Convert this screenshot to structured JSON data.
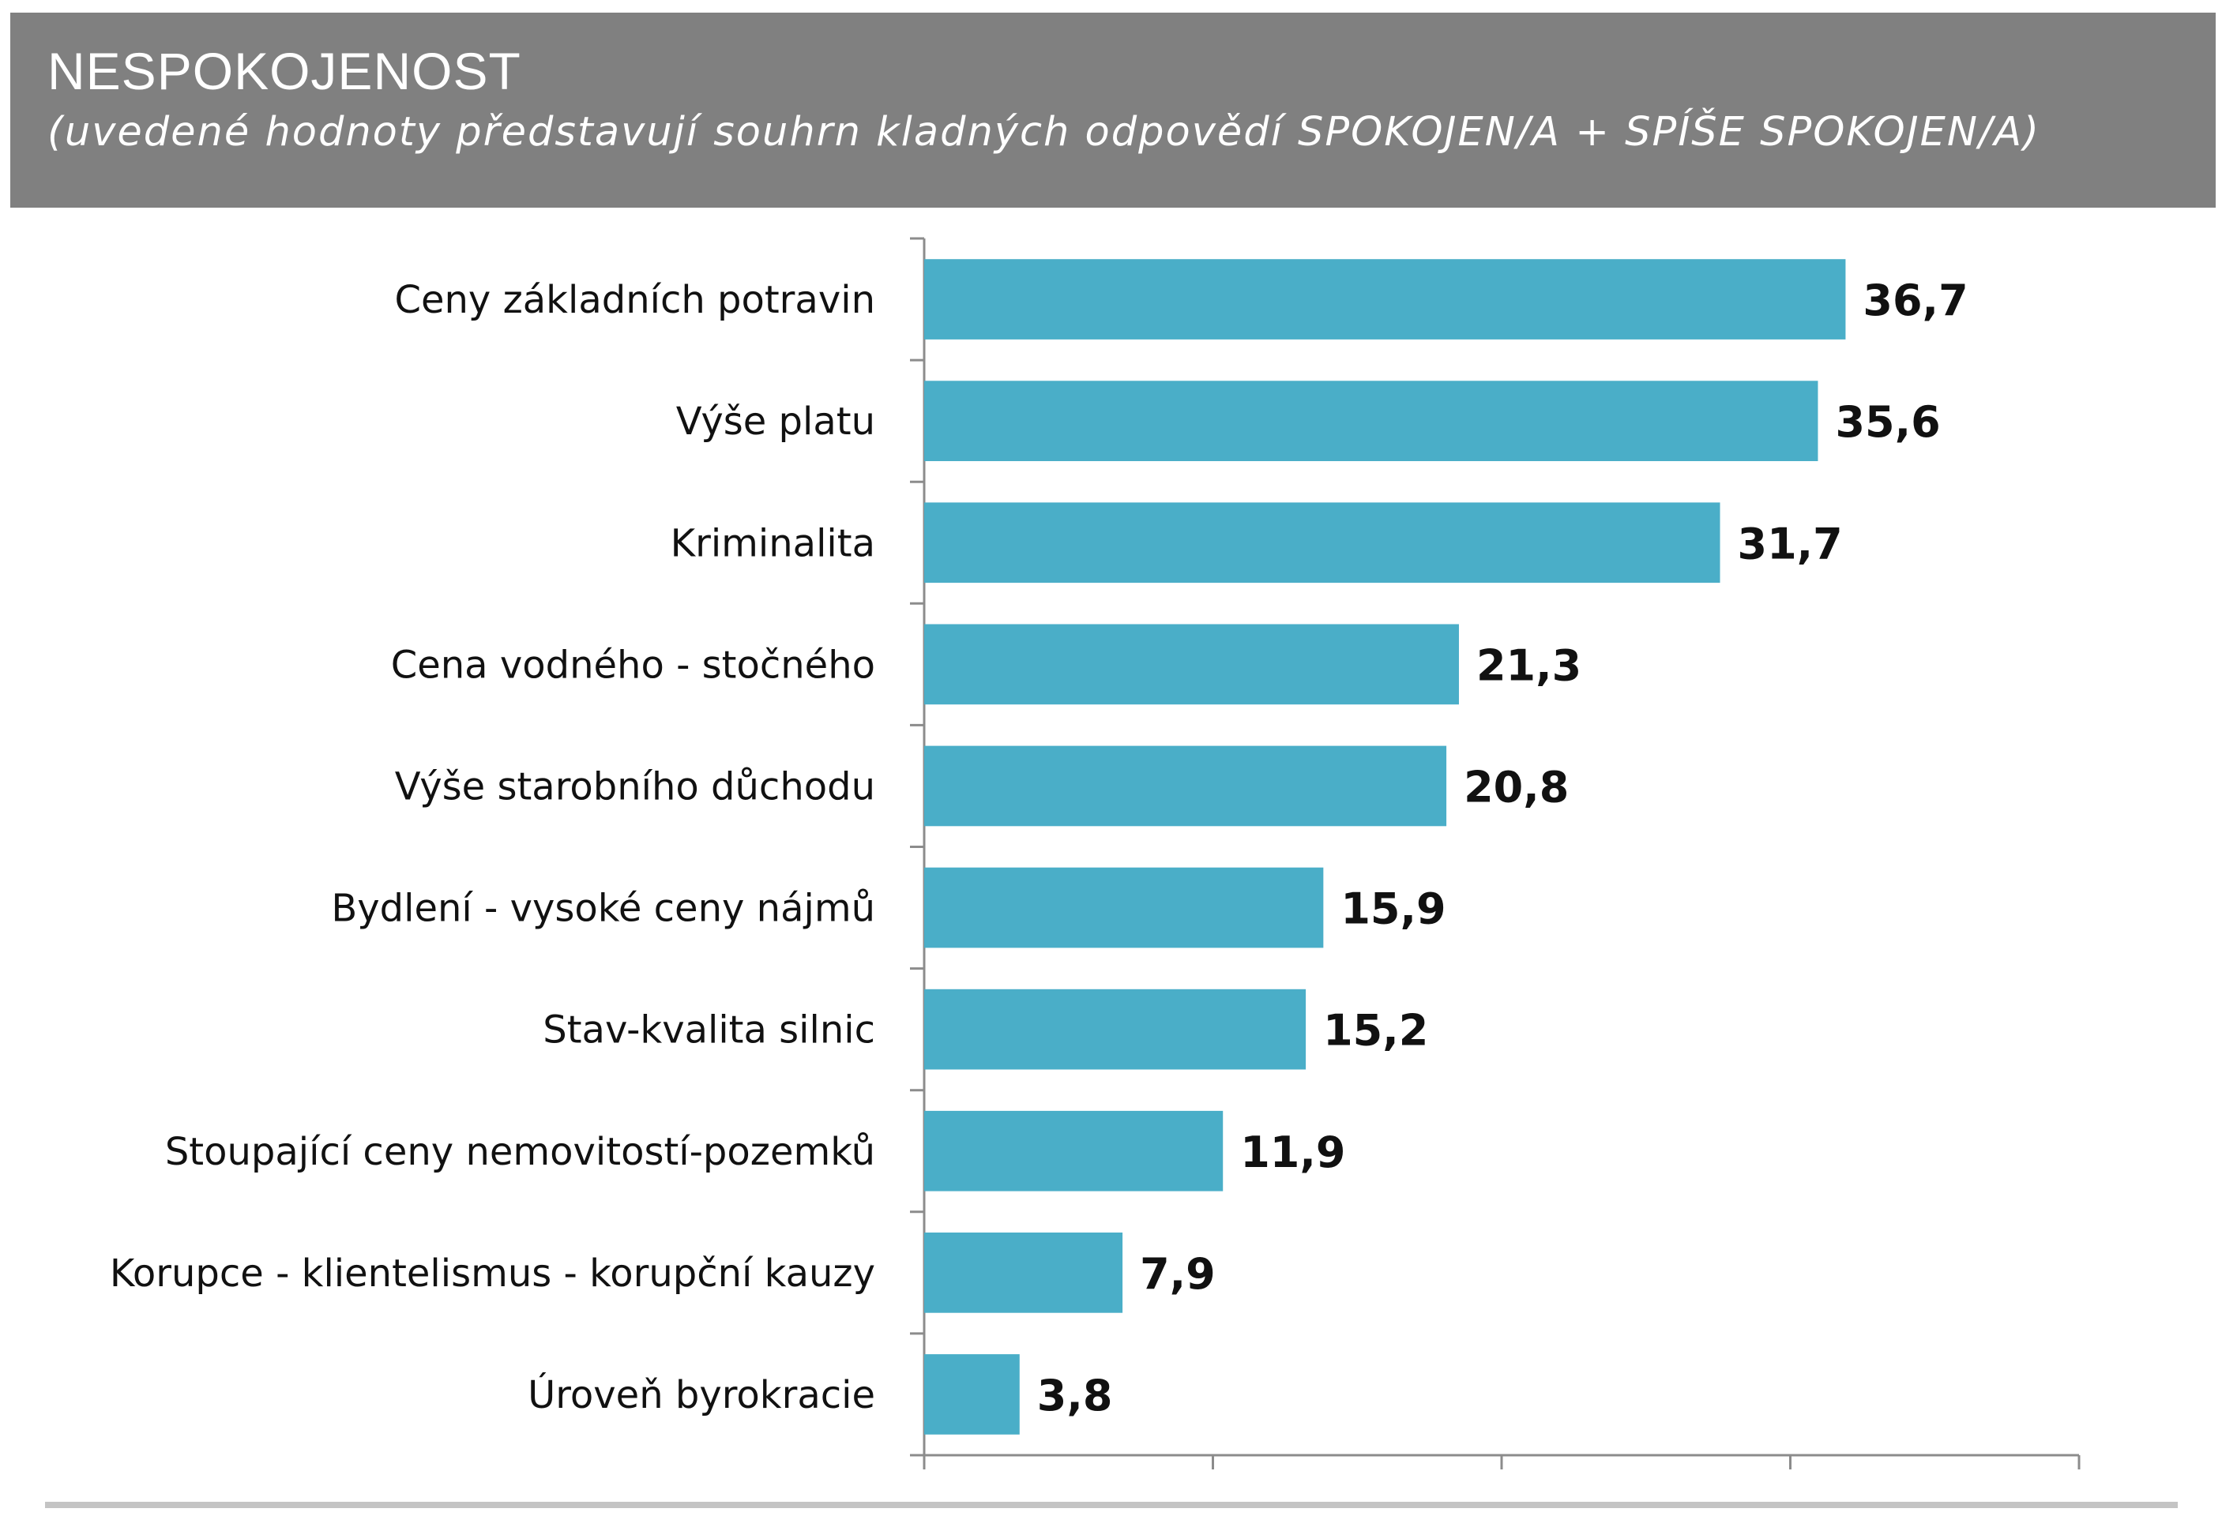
{
  "header": {
    "title": "NESPOKOJENOST",
    "subtitle": "(uvedené hodnoty představují souhrn kladných odpovědí SPOKOJEN/A + SPÍŠE SPOKOJEN/A)"
  },
  "chart_data": {
    "type": "bar",
    "orientation": "horizontal",
    "categories": [
      "Ceny základních potravin",
      "Výše platu",
      "Kriminalita",
      "Cena vodného - stočného",
      "Výše starobního důchodu",
      "Bydlení - vysoké ceny nájmů",
      "Stav-kvalita silnic",
      "Stoupající ceny nemovitostí-pozemků",
      "Korupce - klientelismus - korupční kauzy",
      "Úroveň byrokracie"
    ],
    "values": [
      36.7,
      35.6,
      31.7,
      21.3,
      20.8,
      15.9,
      15.2,
      11.9,
      7.9,
      3.8
    ],
    "value_labels": [
      "36,7",
      "35,6",
      "31,7",
      "21,3",
      "20,8",
      "15,9",
      "15,2",
      "11,9",
      "7,9",
      "3,8"
    ],
    "xlim": [
      0,
      46
    ],
    "grid": false,
    "legend": "none",
    "bar_color": "#4aaec8"
  }
}
